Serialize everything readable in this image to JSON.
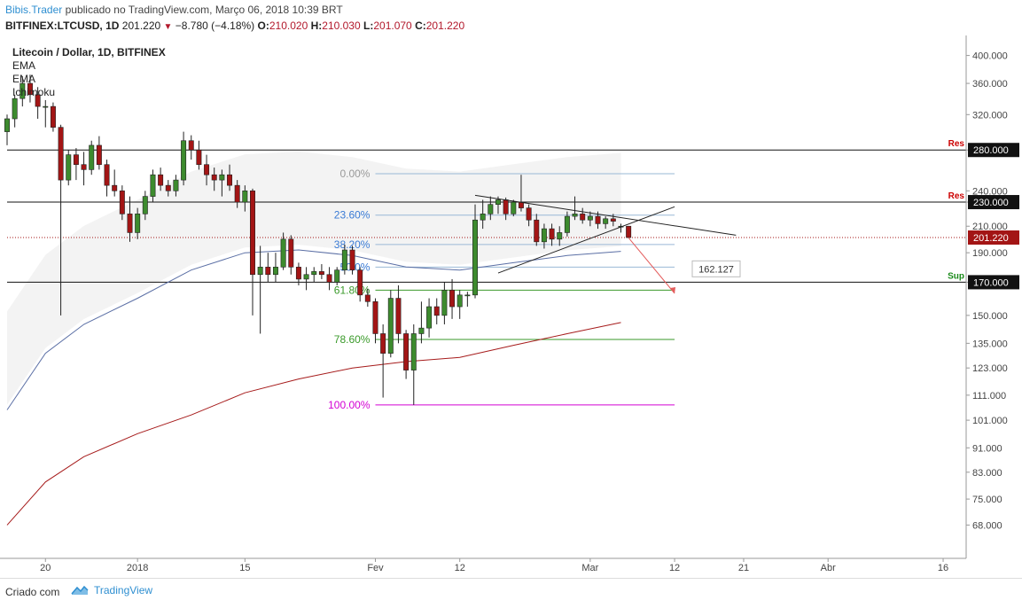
{
  "header": {
    "author": "Bibis.Trader",
    "published_text": "publicado no TradingView.com, Março 06, 2018 10:39 BRT",
    "symbol_line": "BITFINEX:LTCUSD, 1D",
    "last": "201.220",
    "change": "−8.780 (−4.18%)",
    "o_label": "O:",
    "o": "210.020",
    "h_label": "H:",
    "h": "210.030",
    "l_label": "L:",
    "l": "201.070",
    "c_label": "C:",
    "c": "201.220"
  },
  "legend": {
    "title": "Litecoin / Dollar, 1D, BITFINEX",
    "indicators": [
      "EMA",
      "EMA",
      "Ichimoku"
    ]
  },
  "footer": {
    "made_with": "Criado com",
    "brand": "TradingView"
  },
  "colors": {
    "up": "#3d8b2e",
    "down": "#a31515",
    "ema_fast": "#5b6fa5",
    "ema_slow": "#a61b1b",
    "cloud": "#f0f0f0",
    "fib_line": "#9ab8d6",
    "fib_61": "#3a9a2a",
    "fib_100": "#d400d4",
    "res": "#cc0000",
    "sup": "#1a8a1a",
    "accent": "#2f8fd1"
  },
  "chart_data": {
    "type": "candlestick",
    "y_axis": {
      "scale": "log",
      "ylim": [
        62,
        420
      ],
      "ticks": [
        "400.000",
        "360.000",
        "320.000",
        "280.000",
        "240.000",
        "230.000",
        "210.000",
        "190.000",
        "170.000",
        "150.000",
        "135.000",
        "123.000",
        "111.000",
        "101.000",
        "91.000",
        "83.000",
        "75.000",
        "68.000"
      ]
    },
    "x_axis": {
      "start": "2017-12-15",
      "end": "2018-04-19",
      "labels": [
        {
          "date": "2017-12-20",
          "text": "20"
        },
        {
          "date": "2018-01-01",
          "text": "2018"
        },
        {
          "date": "2018-01-15",
          "text": "15"
        },
        {
          "date": "2018-02-01",
          "text": "Fev"
        },
        {
          "date": "2018-02-12",
          "text": "12"
        },
        {
          "date": "2018-03-01",
          "text": "Mar"
        },
        {
          "date": "2018-03-12",
          "text": "12"
        },
        {
          "date": "2018-03-21",
          "text": "21"
        },
        {
          "date": "2018-04-01",
          "text": "Abr"
        },
        {
          "date": "2018-04-16",
          "text": "16"
        }
      ]
    },
    "price_tags": [
      {
        "value": 280,
        "text": "280.000",
        "level_label": "Res",
        "kind": "res"
      },
      {
        "value": 230,
        "text": "230.000",
        "level_label": "Res",
        "kind": "res"
      },
      {
        "value": 201.22,
        "text": "201.220",
        "kind": "last"
      },
      {
        "value": 170,
        "text": "170.000",
        "level_label": "Sup",
        "kind": "sup"
      }
    ],
    "fibonacci": {
      "from_date": "2018-02-01",
      "to_date": "2018-03-12",
      "levels": [
        {
          "label": "0.00%",
          "value": 256
        },
        {
          "label": "23.60%",
          "value": 219
        },
        {
          "label": "38.20%",
          "value": 196
        },
        {
          "label": "50.0%",
          "value": 180
        },
        {
          "label": "61.80%",
          "value": 165
        },
        {
          "label": "78.60%",
          "value": 137
        },
        {
          "label": "100.00%",
          "value": 107
        }
      ]
    },
    "projection_target": {
      "value": 162.127,
      "text": "162.127"
    },
    "candles": [
      {
        "d": "2017-12-15",
        "o": 300,
        "h": 320,
        "l": 285,
        "c": 315
      },
      {
        "d": "2017-12-16",
        "o": 315,
        "h": 345,
        "l": 305,
        "c": 340
      },
      {
        "d": "2017-12-17",
        "o": 340,
        "h": 370,
        "l": 330,
        "c": 360
      },
      {
        "d": "2017-12-18",
        "o": 360,
        "h": 372,
        "l": 335,
        "c": 345
      },
      {
        "d": "2017-12-19",
        "o": 345,
        "h": 355,
        "l": 315,
        "c": 330
      },
      {
        "d": "2017-12-20",
        "o": 330,
        "h": 338,
        "l": 305,
        "c": 330
      },
      {
        "d": "2017-12-21",
        "o": 330,
        "h": 335,
        "l": 300,
        "c": 305
      },
      {
        "d": "2017-12-22",
        "o": 305,
        "h": 308,
        "l": 150,
        "c": 250
      },
      {
        "d": "2017-12-23",
        "o": 250,
        "h": 280,
        "l": 245,
        "c": 275
      },
      {
        "d": "2017-12-24",
        "o": 275,
        "h": 282,
        "l": 250,
        "c": 265
      },
      {
        "d": "2017-12-25",
        "o": 265,
        "h": 278,
        "l": 245,
        "c": 260
      },
      {
        "d": "2017-12-26",
        "o": 260,
        "h": 290,
        "l": 255,
        "c": 285
      },
      {
        "d": "2017-12-27",
        "o": 285,
        "h": 295,
        "l": 260,
        "c": 265
      },
      {
        "d": "2017-12-28",
        "o": 265,
        "h": 270,
        "l": 235,
        "c": 245
      },
      {
        "d": "2017-12-29",
        "o": 245,
        "h": 260,
        "l": 235,
        "c": 240
      },
      {
        "d": "2017-12-30",
        "o": 240,
        "h": 245,
        "l": 215,
        "c": 220
      },
      {
        "d": "2017-12-31",
        "o": 220,
        "h": 235,
        "l": 198,
        "c": 205
      },
      {
        "d": "2018-01-01",
        "o": 205,
        "h": 225,
        "l": 200,
        "c": 220
      },
      {
        "d": "2018-01-02",
        "o": 220,
        "h": 240,
        "l": 215,
        "c": 235
      },
      {
        "d": "2018-01-03",
        "o": 235,
        "h": 260,
        "l": 230,
        "c": 255
      },
      {
        "d": "2018-01-04",
        "o": 255,
        "h": 262,
        "l": 240,
        "c": 245
      },
      {
        "d": "2018-01-05",
        "o": 245,
        "h": 250,
        "l": 235,
        "c": 240
      },
      {
        "d": "2018-01-06",
        "o": 240,
        "h": 255,
        "l": 235,
        "c": 250
      },
      {
        "d": "2018-01-07",
        "o": 250,
        "h": 300,
        "l": 245,
        "c": 290
      },
      {
        "d": "2018-01-08",
        "o": 290,
        "h": 296,
        "l": 270,
        "c": 280
      },
      {
        "d": "2018-01-09",
        "o": 280,
        "h": 290,
        "l": 260,
        "c": 265
      },
      {
        "d": "2018-01-10",
        "o": 265,
        "h": 275,
        "l": 245,
        "c": 255
      },
      {
        "d": "2018-01-11",
        "o": 255,
        "h": 262,
        "l": 240,
        "c": 250
      },
      {
        "d": "2018-01-12",
        "o": 250,
        "h": 260,
        "l": 235,
        "c": 255
      },
      {
        "d": "2018-01-13",
        "o": 255,
        "h": 265,
        "l": 240,
        "c": 245
      },
      {
        "d": "2018-01-14",
        "o": 245,
        "h": 250,
        "l": 225,
        "c": 230
      },
      {
        "d": "2018-01-15",
        "o": 230,
        "h": 245,
        "l": 222,
        "c": 240
      },
      {
        "d": "2018-01-16",
        "o": 240,
        "h": 242,
        "l": 150,
        "c": 175
      },
      {
        "d": "2018-01-17",
        "o": 175,
        "h": 195,
        "l": 140,
        "c": 180
      },
      {
        "d": "2018-01-18",
        "o": 180,
        "h": 190,
        "l": 170,
        "c": 175
      },
      {
        "d": "2018-01-19",
        "o": 175,
        "h": 190,
        "l": 170,
        "c": 180
      },
      {
        "d": "2018-01-20",
        "o": 180,
        "h": 205,
        "l": 178,
        "c": 200
      },
      {
        "d": "2018-01-21",
        "o": 200,
        "h": 203,
        "l": 175,
        "c": 180
      },
      {
        "d": "2018-01-22",
        "o": 180,
        "h": 183,
        "l": 168,
        "c": 172
      },
      {
        "d": "2018-01-23",
        "o": 172,
        "h": 180,
        "l": 165,
        "c": 175
      },
      {
        "d": "2018-01-24",
        "o": 175,
        "h": 180,
        "l": 170,
        "c": 177
      },
      {
        "d": "2018-01-25",
        "o": 177,
        "h": 182,
        "l": 172,
        "c": 175
      },
      {
        "d": "2018-01-26",
        "o": 175,
        "h": 180,
        "l": 165,
        "c": 170
      },
      {
        "d": "2018-01-27",
        "o": 170,
        "h": 180,
        "l": 168,
        "c": 178
      },
      {
        "d": "2018-01-28",
        "o": 178,
        "h": 196,
        "l": 175,
        "c": 192
      },
      {
        "d": "2018-01-29",
        "o": 192,
        "h": 195,
        "l": 175,
        "c": 178
      },
      {
        "d": "2018-01-30",
        "o": 178,
        "h": 180,
        "l": 158,
        "c": 162
      },
      {
        "d": "2018-01-31",
        "o": 162,
        "h": 166,
        "l": 155,
        "c": 158
      },
      {
        "d": "2018-02-01",
        "o": 158,
        "h": 160,
        "l": 135,
        "c": 140
      },
      {
        "d": "2018-02-02",
        "o": 140,
        "h": 145,
        "l": 110,
        "c": 130
      },
      {
        "d": "2018-02-03",
        "o": 130,
        "h": 165,
        "l": 128,
        "c": 160
      },
      {
        "d": "2018-02-04",
        "o": 160,
        "h": 168,
        "l": 135,
        "c": 140
      },
      {
        "d": "2018-02-05",
        "o": 140,
        "h": 142,
        "l": 118,
        "c": 122
      },
      {
        "d": "2018-02-06",
        "o": 122,
        "h": 145,
        "l": 107,
        "c": 140
      },
      {
        "d": "2018-02-07",
        "o": 140,
        "h": 158,
        "l": 135,
        "c": 143
      },
      {
        "d": "2018-02-08",
        "o": 143,
        "h": 160,
        "l": 138,
        "c": 155
      },
      {
        "d": "2018-02-09",
        "o": 155,
        "h": 160,
        "l": 145,
        "c": 150
      },
      {
        "d": "2018-02-10",
        "o": 150,
        "h": 170,
        "l": 145,
        "c": 165
      },
      {
        "d": "2018-02-11",
        "o": 165,
        "h": 172,
        "l": 148,
        "c": 155
      },
      {
        "d": "2018-02-12",
        "o": 155,
        "h": 165,
        "l": 148,
        "c": 162
      },
      {
        "d": "2018-02-13",
        "o": 162,
        "h": 164,
        "l": 155,
        "c": 162
      },
      {
        "d": "2018-02-14",
        "o": 162,
        "h": 228,
        "l": 160,
        "c": 215
      },
      {
        "d": "2018-02-15",
        "o": 215,
        "h": 232,
        "l": 208,
        "c": 220
      },
      {
        "d": "2018-02-16",
        "o": 220,
        "h": 235,
        "l": 215,
        "c": 228
      },
      {
        "d": "2018-02-17",
        "o": 228,
        "h": 235,
        "l": 220,
        "c": 232
      },
      {
        "d": "2018-02-18",
        "o": 232,
        "h": 234,
        "l": 215,
        "c": 220
      },
      {
        "d": "2018-02-19",
        "o": 220,
        "h": 232,
        "l": 218,
        "c": 230
      },
      {
        "d": "2018-02-20",
        "o": 230,
        "h": 255,
        "l": 222,
        "c": 225
      },
      {
        "d": "2018-02-21",
        "o": 225,
        "h": 228,
        "l": 210,
        "c": 215
      },
      {
        "d": "2018-02-22",
        "o": 215,
        "h": 220,
        "l": 195,
        "c": 198
      },
      {
        "d": "2018-02-23",
        "o": 198,
        "h": 212,
        "l": 193,
        "c": 208
      },
      {
        "d": "2018-02-24",
        "o": 208,
        "h": 212,
        "l": 195,
        "c": 200
      },
      {
        "d": "2018-02-25",
        "o": 200,
        "h": 210,
        "l": 195,
        "c": 205
      },
      {
        "d": "2018-02-26",
        "o": 205,
        "h": 222,
        "l": 202,
        "c": 218
      },
      {
        "d": "2018-02-27",
        "o": 218,
        "h": 235,
        "l": 215,
        "c": 220
      },
      {
        "d": "2018-02-28",
        "o": 220,
        "h": 225,
        "l": 212,
        "c": 215
      },
      {
        "d": "2018-03-01",
        "o": 215,
        "h": 222,
        "l": 210,
        "c": 218
      },
      {
        "d": "2018-03-02",
        "o": 218,
        "h": 222,
        "l": 208,
        "c": 212
      },
      {
        "d": "2018-03-03",
        "o": 212,
        "h": 218,
        "l": 208,
        "c": 216
      },
      {
        "d": "2018-03-04",
        "o": 216,
        "h": 220,
        "l": 210,
        "c": 214
      },
      {
        "d": "2018-03-05",
        "o": 210,
        "h": 212,
        "l": 205,
        "c": 210
      },
      {
        "d": "2018-03-06",
        "o": 210.02,
        "h": 210.03,
        "l": 201.07,
        "c": 201.22
      }
    ],
    "ema_fast": [
      {
        "d": "2017-12-15",
        "v": 105
      },
      {
        "d": "2017-12-20",
        "v": 130
      },
      {
        "d": "2017-12-25",
        "v": 145
      },
      {
        "d": "2018-01-01",
        "v": 160
      },
      {
        "d": "2018-01-08",
        "v": 178
      },
      {
        "d": "2018-01-15",
        "v": 190
      },
      {
        "d": "2018-01-22",
        "v": 192
      },
      {
        "d": "2018-01-29",
        "v": 188
      },
      {
        "d": "2018-02-05",
        "v": 180
      },
      {
        "d": "2018-02-12",
        "v": 178
      },
      {
        "d": "2018-02-19",
        "v": 183
      },
      {
        "d": "2018-02-26",
        "v": 188
      },
      {
        "d": "2018-03-05",
        "v": 191
      }
    ],
    "ema_slow": [
      {
        "d": "2017-12-15",
        "v": 68
      },
      {
        "d": "2017-12-20",
        "v": 80
      },
      {
        "d": "2017-12-25",
        "v": 88
      },
      {
        "d": "2018-01-01",
        "v": 96
      },
      {
        "d": "2018-01-08",
        "v": 103
      },
      {
        "d": "2018-01-15",
        "v": 112
      },
      {
        "d": "2018-01-22",
        "v": 118
      },
      {
        "d": "2018-01-29",
        "v": 123
      },
      {
        "d": "2018-02-05",
        "v": 126
      },
      {
        "d": "2018-02-12",
        "v": 128
      },
      {
        "d": "2018-02-19",
        "v": 134
      },
      {
        "d": "2018-02-26",
        "v": 140
      },
      {
        "d": "2018-03-05",
        "v": 146
      }
    ],
    "trendlines": [
      {
        "name": "upper",
        "from": {
          "d": "2018-02-14",
          "v": 236
        },
        "to": {
          "d": "2018-03-20",
          "v": 203
        }
      },
      {
        "name": "lower",
        "from": {
          "d": "2018-02-17",
          "v": 176
        },
        "to": {
          "d": "2018-03-12",
          "v": 226
        }
      }
    ],
    "projection_arrow": {
      "from": {
        "d": "2018-03-06",
        "v": 201
      },
      "to": {
        "d": "2018-03-12",
        "v": 163
      }
    }
  }
}
